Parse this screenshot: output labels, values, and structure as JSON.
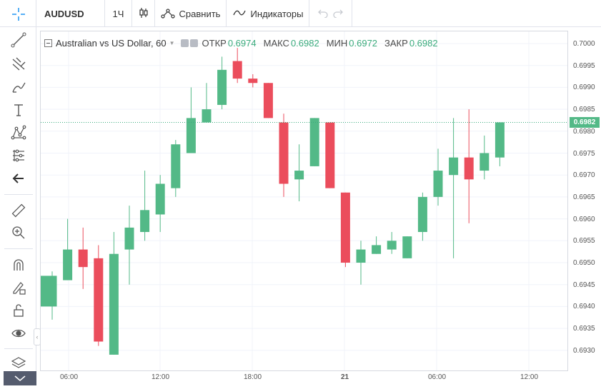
{
  "toolbar": {
    "symbol": "AUDUSD",
    "interval": "1Ч",
    "compare_label": "Сравнить",
    "indicators_label": "Индикаторы"
  },
  "legend": {
    "title": "Australian vs US Dollar, 60",
    "open_label": "ОТКР",
    "open": "0.6974",
    "high_label": "МАКС",
    "high": "0.6982",
    "low_label": "МИН",
    "low": "0.6972",
    "close_label": "ЗАКР",
    "close": "0.6982"
  },
  "price_axis": {
    "labels": [
      "0.7000",
      "0.6995",
      "0.6990",
      "0.6985",
      "0.6980",
      "0.6975",
      "0.6970",
      "0.6965",
      "0.6960",
      "0.6955",
      "0.6950",
      "0.6945",
      "0.6940",
      "0.6935",
      "0.6930"
    ],
    "last_price": "0.6982"
  },
  "time_axis": {
    "labels": [
      "06:00",
      "12:00",
      "18:00",
      "21",
      "06:00",
      "12:00"
    ]
  },
  "colors": {
    "up": "#53b987",
    "down": "#eb4d5c",
    "grid": "#f0f3fa",
    "last_line": "#3aab7c"
  },
  "chart_data": {
    "type": "candlestick",
    "title": "Australian vs US Dollar, 60",
    "y_range": [
      0.6925,
      0.7003
    ],
    "candles": [
      {
        "o": 0.694,
        "h": 0.6948,
        "l": 0.6937,
        "c": 0.6947
      },
      {
        "o": 0.6946,
        "h": 0.696,
        "l": 0.6946,
        "c": 0.6953
      },
      {
        "o": 0.6953,
        "h": 0.6958,
        "l": 0.6944,
        "c": 0.6949
      },
      {
        "o": 0.6951,
        "h": 0.6954,
        "l": 0.6931,
        "c": 0.6932
      },
      {
        "o": 0.6929,
        "h": 0.6957,
        "l": 0.6929,
        "c": 0.6952
      },
      {
        "o": 0.6953,
        "h": 0.6963,
        "l": 0.6945,
        "c": 0.6958
      },
      {
        "o": 0.6957,
        "h": 0.6971,
        "l": 0.6955,
        "c": 0.6962
      },
      {
        "o": 0.6961,
        "h": 0.697,
        "l": 0.6957,
        "c": 0.6968
      },
      {
        "o": 0.6967,
        "h": 0.6978,
        "l": 0.6965,
        "c": 0.6977
      },
      {
        "o": 0.6975,
        "h": 0.699,
        "l": 0.6975,
        "c": 0.6983
      },
      {
        "o": 0.6982,
        "h": 0.6991,
        "l": 0.6982,
        "c": 0.6985
      },
      {
        "o": 0.6986,
        "h": 0.6997,
        "l": 0.6985,
        "c": 0.6994
      },
      {
        "o": 0.6996,
        "h": 0.6999,
        "l": 0.6991,
        "c": 0.6992
      },
      {
        "o": 0.6992,
        "h": 0.6993,
        "l": 0.699,
        "c": 0.6991
      },
      {
        "o": 0.6991,
        "h": 0.6991,
        "l": 0.6983,
        "c": 0.6983
      },
      {
        "o": 0.6982,
        "h": 0.6984,
        "l": 0.6965,
        "c": 0.6968
      },
      {
        "o": 0.6969,
        "h": 0.6977,
        "l": 0.6964,
        "c": 0.6971
      },
      {
        "o": 0.6972,
        "h": 0.6983,
        "l": 0.6972,
        "c": 0.6983
      },
      {
        "o": 0.6982,
        "h": 0.6982,
        "l": 0.6967,
        "c": 0.6967
      },
      {
        "o": 0.6966,
        "h": 0.6966,
        "l": 0.6949,
        "c": 0.695
      },
      {
        "o": 0.695,
        "h": 0.6955,
        "l": 0.6945,
        "c": 0.6953
      },
      {
        "o": 0.6952,
        "h": 0.6956,
        "l": 0.6952,
        "c": 0.6954
      },
      {
        "o": 0.6953,
        "h": 0.6957,
        "l": 0.6952,
        "c": 0.6955
      },
      {
        "o": 0.6951,
        "h": 0.6956,
        "l": 0.6951,
        "c": 0.6956
      },
      {
        "o": 0.6957,
        "h": 0.6966,
        "l": 0.6955,
        "c": 0.6965
      },
      {
        "o": 0.6965,
        "h": 0.6976,
        "l": 0.6963,
        "c": 0.6971
      },
      {
        "o": 0.697,
        "h": 0.6983,
        "l": 0.6951,
        "c": 0.6974
      },
      {
        "o": 0.6974,
        "h": 0.6985,
        "l": 0.6959,
        "c": 0.6969
      },
      {
        "o": 0.6971,
        "h": 0.6979,
        "l": 0.6969,
        "c": 0.6975
      },
      {
        "o": 0.6974,
        "h": 0.6982,
        "l": 0.6972,
        "c": 0.6982
      }
    ]
  }
}
